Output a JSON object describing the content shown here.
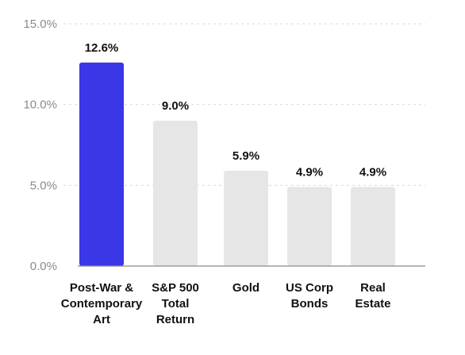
{
  "chart_data": {
    "type": "bar",
    "categories": [
      [
        "Post-War &",
        "Contemporary",
        "Art"
      ],
      [
        "S&P 500",
        "Total",
        "Return"
      ],
      [
        "Gold"
      ],
      [
        "US Corp",
        "Bonds"
      ],
      [
        "Real",
        "Estate"
      ]
    ],
    "values": [
      12.6,
      9.0,
      5.9,
      4.9,
      4.9
    ],
    "value_labels": [
      "12.6%",
      "9.0%",
      "5.9%",
      "4.9%",
      "4.9%"
    ],
    "ylim": [
      0,
      15
    ],
    "y_ticks": [
      {
        "value": 0,
        "label": "0.0%"
      },
      {
        "value": 5,
        "label": "5.0%"
      },
      {
        "value": 10,
        "label": "10.0%"
      },
      {
        "value": 15,
        "label": "15.0%"
      }
    ],
    "grid": true,
    "colors": {
      "highlight": "#3a37e6",
      "bar": "#e6e6e6",
      "grid": "#d9d9d9",
      "axis": "#8a8a8a",
      "text": "#111111",
      "tick_text": "#8a8a8a"
    },
    "highlight_index": 0
  }
}
